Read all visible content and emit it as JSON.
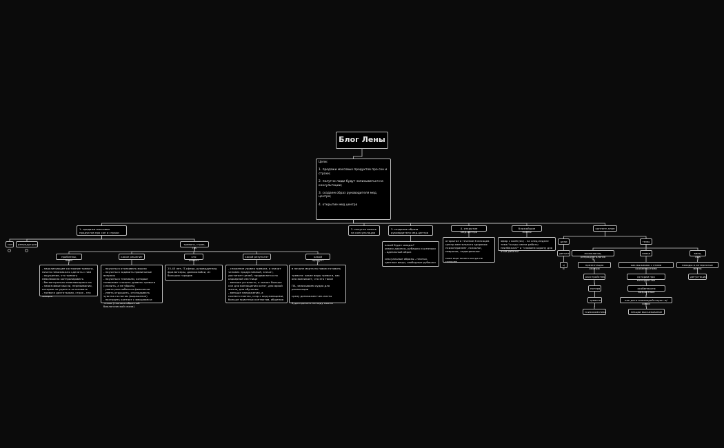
{
  "root": "Блог Лены",
  "goals": "Цели:\n\n1. продажи массовых продуктов про сон и страхи;\n\n2. полутно люди будут записываться на консультации;\n\n3. создаем образ руководителя мед. центра;\n\n4. открытие мед.центра",
  "branches": {
    "b1": "1. продажи массовых продуктов про сон и страхи",
    "b2": "2. полутно запись на консультации",
    "b3": "3. создание образа руководителя мед.центра",
    "b4": "4. открытие мед.центра",
    "b5": "ближайшие планы",
    "b6": "контент-план"
  },
  "b1": {
    "son": "сон",
    "repro": "репродукция",
    "trevoga": "тревога, страх, ПА",
    "headers": [
      "проблемы, боли",
      "какое решение",
      "кто клиент",
      "какой результат",
      "какой продукт"
    ],
    "details": [
      "- парализующее состояние тревоги, ничего невозможно сделать с ним\n- ощущение, что тревогу невозможно контролировать\n- бесконтрольно появляющиеся па\n- навязчивые мысли, переживания, которые не удается остановить\n- тревога диктатыжая, страх - это эмоция",
      "- научиться отсекивать мысли\n- научиться задавать правильные вопросы\n- научиться техникам, которые позволяют снизить уровень тревоги (снизить, а не убрать)\n- уметь расслабиться физически\n- уметь отдышать, отсеждывать чувства на потом (выражение)\n- настроить контакт с эмоциями и телом (техника обратной биологической связи)",
      "25-45 лет, IT-сфера, руководители, фрилансеры, домохозяйки, из больших городов",
      "- снижение уровня тревоги, а значит человек продуктивный, значит, достигает целей, продвигается по карьерной лестнице\n- меньше усталость, а значит больше сил для воплощения хотят, для яркой жизни, для обучения\n- меньше напряжения, а соответственно, ссор с окружающими, больше приятных контактов, общения",
      "в начале марта на новом готовить\n\nтревога: какие виды тревоги, как она возникает, что это такое\n\nПА, записываем аудио для релаксации\n\nсразу допокажем чек-листы\n\nбудем делать по ходу мысли"
    ]
  },
  "b3_detail": "какой будет имидж?\nуважо джинсы, рубашка и штаньки - идеальный образ\n\nсексуальные образы - платья, цветные вещи, свободные рубашки",
  "b4_detail": "открытие в течение 8 месяцев центр ментального здоровья: психотерапевт, психолог, невролог, эндокринолог\n\nпока еще ничего когда не говорим",
  "b5_detail": "эфир с Асей (bv) - на след.неделе тема \"когда смена работы неизбежна?\" и \"сливаем корону для этой работы\"",
  "content_plan": {
    "goals": "цели",
    "money": "деньги",
    "zb": "з/б",
    "themes": "темы",
    "col1": [
      "психология, репродуктология",
      "презентация смотрю",
      "расстройства",
      "потеря",
      "тревоги",
      "психосоматика"
    ],
    "col2": [
      "семья",
      "как выживаю с этими особенностями",
      "истории про материнство",
      "особенности возрастные",
      "как дети взаимодействуют м/собой",
      "лекции высказывание"
    ],
    "col3": [
      "вино, еда",
      "походы в интересные места",
      "дегустации"
    ]
  },
  "colors": {
    "background": "#0b0b0b",
    "node_border": "#bdbdbd",
    "edge": "#cfcfcf",
    "text": "#e8e8e8"
  }
}
